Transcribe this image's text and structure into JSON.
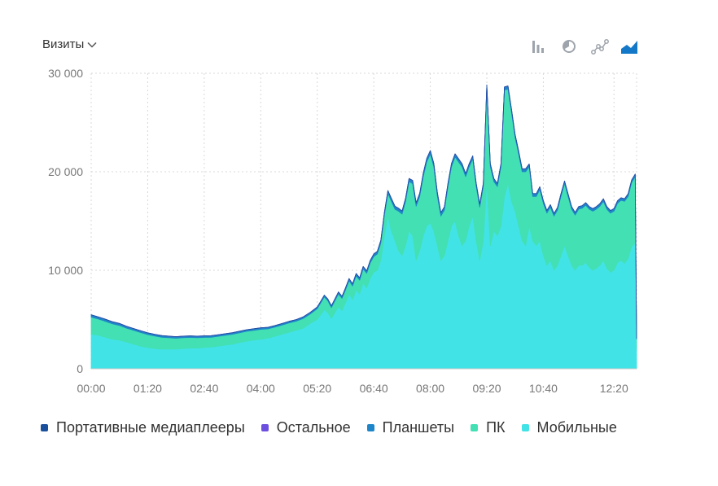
{
  "header": {
    "metric_label": "Визиты"
  },
  "toolbar": {
    "icons": [
      "bar-chart-icon",
      "pie-chart-icon",
      "line-chart-icon",
      "area-chart-icon"
    ],
    "active": "area-chart-icon"
  },
  "colors": {
    "mobile": "#42e3e6",
    "pc": "#43e0b4",
    "tablets": "#1e86c8",
    "other": "#6d4fe0",
    "media": "#1a4f9c",
    "grid": "#d8d8d8",
    "icon": "#9ea4ac",
    "icon_active": "#1478c8"
  },
  "chart_data": {
    "type": "area",
    "stacked": true,
    "title": "",
    "xlabel": "",
    "ylabel": "",
    "ylim": [
      0,
      30000
    ],
    "xlim": [
      0,
      772
    ],
    "x_tick_labels": [
      "00:00",
      "01:20",
      "02:40",
      "04:00",
      "05:20",
      "06:40",
      "08:00",
      "09:20",
      "10:40",
      "12:20"
    ],
    "x_tick_values": [
      0,
      80,
      160,
      240,
      320,
      400,
      480,
      560,
      640,
      740
    ],
    "y_ticks": [
      0,
      10000,
      20000,
      30000
    ],
    "y_tick_labels": [
      "0",
      "10 000",
      "20 000",
      "30 000"
    ],
    "x": [
      0,
      10,
      20,
      30,
      40,
      50,
      60,
      70,
      80,
      90,
      100,
      110,
      120,
      130,
      140,
      150,
      160,
      170,
      180,
      190,
      200,
      210,
      220,
      230,
      240,
      250,
      260,
      270,
      280,
      290,
      300,
      310,
      320,
      325,
      330,
      335,
      340,
      345,
      350,
      355,
      360,
      365,
      370,
      375,
      380,
      385,
      390,
      395,
      400,
      405,
      410,
      415,
      420,
      425,
      430,
      435,
      440,
      445,
      450,
      455,
      460,
      465,
      470,
      475,
      480,
      485,
      490,
      495,
      500,
      505,
      510,
      515,
      520,
      525,
      530,
      535,
      540,
      545,
      550,
      555,
      560,
      565,
      570,
      575,
      580,
      585,
      590,
      595,
      600,
      605,
      610,
      615,
      620,
      625,
      630,
      635,
      640,
      645,
      650,
      655,
      660,
      665,
      670,
      675,
      680,
      685,
      690,
      695,
      700,
      705,
      710,
      715,
      720,
      725,
      730,
      735,
      740,
      745,
      750,
      755,
      760,
      765,
      770,
      772
    ],
    "legend": [
      "Портативные медиаплееры",
      "Остальное",
      "Планшеты",
      "ПК",
      "Мобильные"
    ],
    "legend_position": "bottom",
    "series": [
      {
        "name": "Мобильные",
        "values": [
          3500,
          3400,
          3200,
          3000,
          2900,
          2700,
          2500,
          2300,
          2150,
          2050,
          2000,
          2000,
          2000,
          2050,
          2100,
          2100,
          2150,
          2200,
          2300,
          2400,
          2500,
          2650,
          2800,
          2900,
          3000,
          3100,
          3300,
          3500,
          3700,
          3900,
          4100,
          4600,
          5000,
          5500,
          6000,
          5700,
          5100,
          5700,
          6300,
          5900,
          6700,
          7600,
          7000,
          8000,
          7600,
          8700,
          8200,
          9200,
          9800,
          10000,
          11000,
          13500,
          15500,
          14000,
          13000,
          12000,
          11500,
          12500,
          14000,
          13500,
          11000,
          12000,
          13500,
          14500,
          14800,
          14000,
          12500,
          11000,
          11500,
          13000,
          14500,
          15000,
          13500,
          12500,
          13000,
          14500,
          15500,
          13000,
          11000,
          13000,
          19000,
          12500,
          14000,
          13500,
          14500,
          17500,
          18800,
          17000,
          16000,
          14500,
          13000,
          12500,
          14500,
          13000,
          12500,
          13000,
          11500,
          10500,
          11000,
          10000,
          10500,
          11500,
          12500,
          11500,
          10500,
          10000,
          10500,
          10500,
          10800,
          10300,
          10000,
          10200,
          10500,
          11000,
          10200,
          9800,
          10000,
          10800,
          11000,
          10700,
          11200,
          12400,
          12800,
          2000
        ]
      },
      {
        "name": "ПК",
        "values": [
          1750,
          1650,
          1620,
          1570,
          1500,
          1420,
          1400,
          1380,
          1320,
          1280,
          1200,
          1150,
          1100,
          1100,
          1080,
          1050,
          1030,
          1000,
          1000,
          1000,
          1000,
          1000,
          1000,
          1000,
          1000,
          950,
          920,
          930,
          950,
          930,
          1000,
          950,
          1100,
          1200,
          1300,
          1200,
          1100,
          1200,
          1300,
          1250,
          1300,
          1350,
          1400,
          1450,
          1400,
          1450,
          1500,
          1550,
          1600,
          1650,
          1750,
          2100,
          2300,
          3000,
          3200,
          4000,
          4200,
          4500,
          5000,
          5300,
          5500,
          5500,
          6000,
          6500,
          7000,
          6500,
          5000,
          4500,
          4600,
          5500,
          6000,
          6500,
          7500,
          8000,
          6500,
          6000,
          5800,
          5500,
          5400,
          5500,
          9500,
          8000,
          5000,
          5000,
          6000,
          10800,
          9600,
          9000,
          7500,
          7300,
          7000,
          7500,
          6000,
          4500,
          5000,
          5200,
          5300,
          5300,
          5400,
          5500,
          5600,
          6000,
          6300,
          6000,
          5700,
          5600,
          5700,
          5800,
          5800,
          5900,
          6000,
          6000,
          6000,
          6000,
          6000,
          6000,
          6000,
          6000,
          6100,
          6300,
          6300,
          6500,
          6700,
          1000
        ]
      },
      {
        "name": "Планшеты",
        "values": [
          220,
          210,
          205,
          200,
          190,
          180,
          175,
          170,
          165,
          160,
          155,
          150,
          150,
          150,
          150,
          150,
          150,
          150,
          150,
          150,
          150,
          150,
          150,
          150,
          150,
          150,
          150,
          150,
          150,
          150,
          160,
          160,
          160,
          160,
          160,
          170,
          180,
          180,
          190,
          190,
          200,
          200,
          210,
          210,
          220,
          220,
          230,
          240,
          250,
          260,
          270,
          270,
          280,
          280,
          290,
          290,
          300,
          300,
          310,
          310,
          320,
          320,
          330,
          330,
          340,
          340,
          350,
          340,
          330,
          320,
          320,
          310,
          310,
          300,
          300,
          300,
          300,
          300,
          300,
          300,
          300,
          300,
          300,
          300,
          300,
          300,
          300,
          300,
          300,
          300,
          290,
          290,
          280,
          280,
          270,
          270,
          260,
          260,
          250,
          250,
          250,
          250,
          250,
          250,
          250,
          250,
          250,
          250,
          250,
          250,
          250,
          250,
          250,
          250,
          250,
          250,
          250,
          250,
          250,
          250,
          250,
          250,
          250,
          100
        ]
      },
      {
        "name": "Остальное",
        "values": [
          10,
          10,
          10,
          10,
          10,
          10,
          10,
          10,
          10,
          10,
          10,
          10,
          10,
          10,
          10,
          10,
          10,
          10,
          10,
          10,
          10,
          10,
          10,
          10,
          10,
          10,
          10,
          10,
          10,
          10,
          10,
          10,
          10,
          10,
          10,
          10,
          10,
          10,
          10,
          10,
          10,
          10,
          10,
          10,
          10,
          10,
          10,
          10,
          10,
          10,
          10,
          10,
          10,
          10,
          10,
          10,
          10,
          10,
          10,
          10,
          10,
          10,
          10,
          10,
          10,
          10,
          10,
          10,
          10,
          10,
          10,
          10,
          10,
          10,
          10,
          10,
          10,
          10,
          10,
          10,
          10,
          10,
          10,
          10,
          10,
          10,
          10,
          10,
          10,
          10,
          10,
          10,
          10,
          10,
          10,
          10,
          10,
          10,
          10,
          10,
          10,
          10,
          10,
          10,
          10,
          10,
          10,
          10,
          10,
          10,
          10,
          10,
          10,
          10,
          10,
          10,
          10,
          10,
          10,
          10,
          10,
          10,
          10,
          5
        ]
      },
      {
        "name": "Портативные медиаплееры",
        "values": [
          5,
          5,
          5,
          5,
          5,
          5,
          5,
          5,
          5,
          5,
          5,
          5,
          5,
          5,
          5,
          5,
          5,
          5,
          5,
          5,
          5,
          5,
          5,
          5,
          5,
          5,
          5,
          5,
          5,
          5,
          5,
          5,
          5,
          5,
          5,
          5,
          5,
          5,
          5,
          5,
          5,
          5,
          5,
          5,
          5,
          5,
          5,
          5,
          5,
          5,
          5,
          5,
          5,
          5,
          5,
          5,
          5,
          5,
          5,
          5,
          5,
          5,
          5,
          5,
          5,
          5,
          5,
          5,
          5,
          5,
          5,
          5,
          5,
          5,
          5,
          5,
          5,
          5,
          5,
          5,
          5,
          5,
          5,
          5,
          5,
          5,
          5,
          5,
          5,
          5,
          5,
          5,
          5,
          5,
          5,
          5,
          5,
          5,
          5,
          5,
          5,
          5,
          5,
          5,
          5,
          5,
          5,
          5,
          5,
          5,
          5,
          5,
          5,
          5,
          5,
          5,
          5,
          5,
          5,
          5,
          5,
          5,
          5,
          2
        ]
      }
    ]
  }
}
